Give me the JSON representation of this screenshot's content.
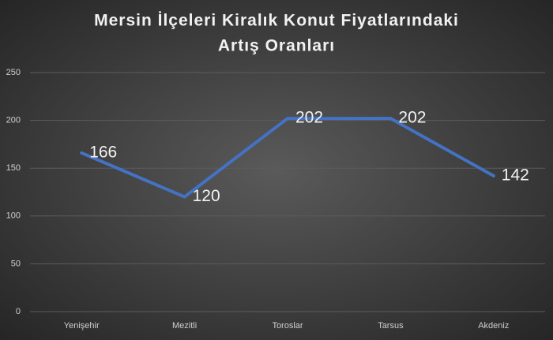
{
  "chart_data": {
    "type": "line",
    "title": [
      "Mersin İlçeleri Kiralık Konut Fiyatlarındaki",
      "Artış Oranları"
    ],
    "categories": [
      "Yenişehir",
      "Mezitli",
      "Toroslar",
      "Tarsus",
      "Akdeniz"
    ],
    "values": [
      166,
      120,
      202,
      202,
      142
    ],
    "color": "#4472c4",
    "ylim": [
      0,
      250
    ],
    "yticks": [
      0,
      50,
      100,
      150,
      200,
      250
    ],
    "grid": true,
    "data_labels": true
  }
}
